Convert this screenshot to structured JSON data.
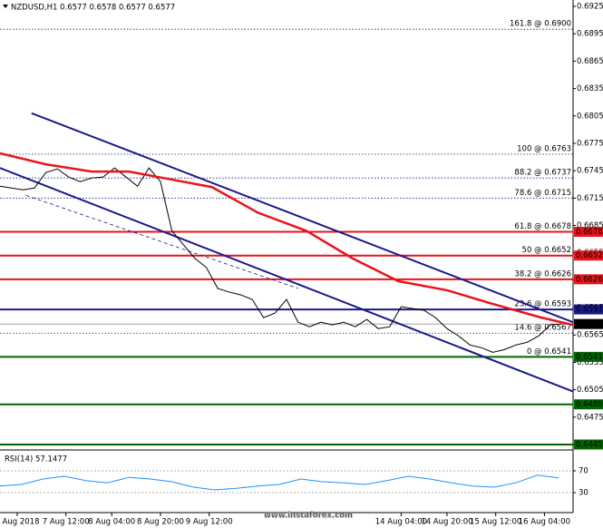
{
  "chart_data": {
    "type": "line",
    "title": "NZDUSD,H1  0.6577 0.6578 0.6577 0.6577",
    "xlim": [
      0,
      200
    ],
    "xticks": [
      {
        "value": 6,
        "label": "6 Aug 2018"
      },
      {
        "value": 23,
        "label": "7 Aug 12:00"
      },
      {
        "value": 39,
        "label": "8 Aug 04:00"
      },
      {
        "value": 56,
        "label": "8 Aug 20:00"
      },
      {
        "value": 73,
        "label": "9 Aug 12:00"
      },
      {
        "value": 140,
        "label": "14 Aug 04:00"
      },
      {
        "value": 156,
        "label": "14 Aug 20:00"
      },
      {
        "value": 173,
        "label": "15 Aug 12:00"
      },
      {
        "value": 190,
        "label": "16 Aug 04:00"
      }
    ],
    "ylim": [
      0.644,
      0.6932
    ],
    "yticks": [
      0.6445,
      0.6475,
      0.6505,
      0.6535,
      0.6565,
      0.6595,
      0.6625,
      0.6655,
      0.6685,
      0.6715,
      0.6745,
      0.6775,
      0.6805,
      0.6835,
      0.6865,
      0.6895,
      0.6925
    ],
    "series": [
      {
        "color": "#000000",
        "width": 1,
        "x": [
          0,
          4,
          8,
          12,
          16,
          20,
          24,
          28,
          32,
          36,
          40,
          44,
          48,
          52,
          56,
          60,
          64,
          68,
          72,
          76,
          80,
          84,
          88,
          92,
          96,
          100,
          104,
          108,
          112,
          116,
          120,
          124,
          128,
          132,
          136,
          140,
          144,
          148,
          152,
          156,
          160,
          164,
          168,
          172,
          176,
          180,
          184,
          188,
          192,
          196
        ],
        "values": [
          0.6728,
          0.6726,
          0.6724,
          0.6726,
          0.6743,
          0.6747,
          0.6738,
          0.6733,
          0.6737,
          0.6738,
          0.6748,
          0.6738,
          0.6728,
          0.6748,
          0.6733,
          0.6679,
          0.6664,
          0.6649,
          0.6639,
          0.6616,
          0.6612,
          0.6609,
          0.6604,
          0.6584,
          0.6589,
          0.6604,
          0.6579,
          0.6574,
          0.6579,
          0.6576,
          0.6579,
          0.6574,
          0.6582,
          0.6572,
          0.6574,
          0.6596,
          0.6594,
          0.6592,
          0.6584,
          0.6572,
          0.6564,
          0.6554,
          0.6551,
          0.6546,
          0.6549,
          0.6554,
          0.6557,
          0.6564,
          0.6576,
          0.6577
        ]
      },
      {
        "color": "#e8141b",
        "width": 2.5,
        "x": [
          0,
          16,
          32,
          45,
          57,
          74,
          90,
          107,
          123,
          139,
          156,
          172,
          189,
          200
        ],
        "values": [
          0.6764,
          0.6752,
          0.6744,
          0.6744,
          0.6737,
          0.6727,
          0.6699,
          0.6679,
          0.6649,
          0.6624,
          0.6614,
          0.6599,
          0.6584,
          0.6576
        ]
      }
    ],
    "levels": [
      {
        "label": "161.8 @ 0.6900",
        "value": 0.69,
        "color": "#1a1a7a",
        "style": "dotted"
      },
      {
        "label": "100 @ 0.6763",
        "value": 0.6763,
        "color": "#1a1a7a",
        "style": "dotted"
      },
      {
        "label": "88.2 @ 0.6737",
        "value": 0.6737,
        "color": "#1a1a7a",
        "style": "dotted"
      },
      {
        "label": "78.6 @ 0.6715",
        "value": 0.6715,
        "color": "#1a1a7a",
        "style": "dotted"
      },
      {
        "label": "61.8 @ 0.6678",
        "value": 0.6678,
        "color": "#e8141b",
        "style": "solid",
        "boxed": true
      },
      {
        "label": "50 @ 0.6652",
        "value": 0.6652,
        "color": "#e8141b",
        "style": "solid",
        "boxed": true
      },
      {
        "label": "38.2 @ 0.6626",
        "value": 0.6626,
        "color": "#e8141b",
        "style": "solid",
        "boxed": true
      },
      {
        "label": "23.6 @ 0.6593",
        "value": 0.6593,
        "color": "#1a1a8c",
        "style": "solid",
        "boxed": true
      },
      {
        "label": "14.6 @ 0.6567",
        "value": 0.6567,
        "color": "#1a1a7a",
        "style": "dotted"
      },
      {
        "label": "0 @ 0.6541",
        "value": 0.6541,
        "color": "#006400",
        "style": "solid",
        "boxed": true
      },
      {
        "value": 0.6489,
        "color": "#006400",
        "style": "solid",
        "boxed": true
      },
      {
        "value": 0.6445,
        "color": "#006400",
        "style": "solid",
        "boxed": true
      }
    ],
    "trendlines": [
      {
        "color": "#1a1a8c",
        "style": "solid",
        "points": [
          [
            11,
            0.6808
          ],
          [
            200,
            0.6579
          ]
        ]
      },
      {
        "color": "#1a1a8c",
        "style": "solid",
        "points": [
          [
            0,
            0.6748
          ],
          [
            200,
            0.6503
          ]
        ]
      },
      {
        "color": "#1a1a8c",
        "style": "dashed",
        "points": [
          [
            9,
            0.6718
          ],
          [
            104,
            0.6616
          ]
        ]
      }
    ],
    "current_price": 0.6577,
    "rsi": {
      "title": "RSI(14) 57.1477",
      "color": "#1e90ff",
      "ylim": [
        0,
        100
      ],
      "yticks": [
        30,
        70
      ],
      "x": [
        0,
        7.5,
        15,
        22.5,
        30,
        37.5,
        45,
        52.5,
        60,
        67.5,
        75,
        82.5,
        90,
        97.5,
        105,
        112.5,
        120,
        127.5,
        135,
        142.5,
        150,
        157.5,
        165,
        172.5,
        180,
        187.5,
        195
      ],
      "values": [
        42,
        45,
        55,
        60,
        52,
        48,
        58,
        55,
        50,
        40,
        35,
        38,
        42,
        45,
        55,
        50,
        48,
        45,
        52,
        60,
        55,
        48,
        42,
        40,
        48,
        62,
        57.1477
      ]
    },
    "watermark": "www.instaforex.com"
  }
}
